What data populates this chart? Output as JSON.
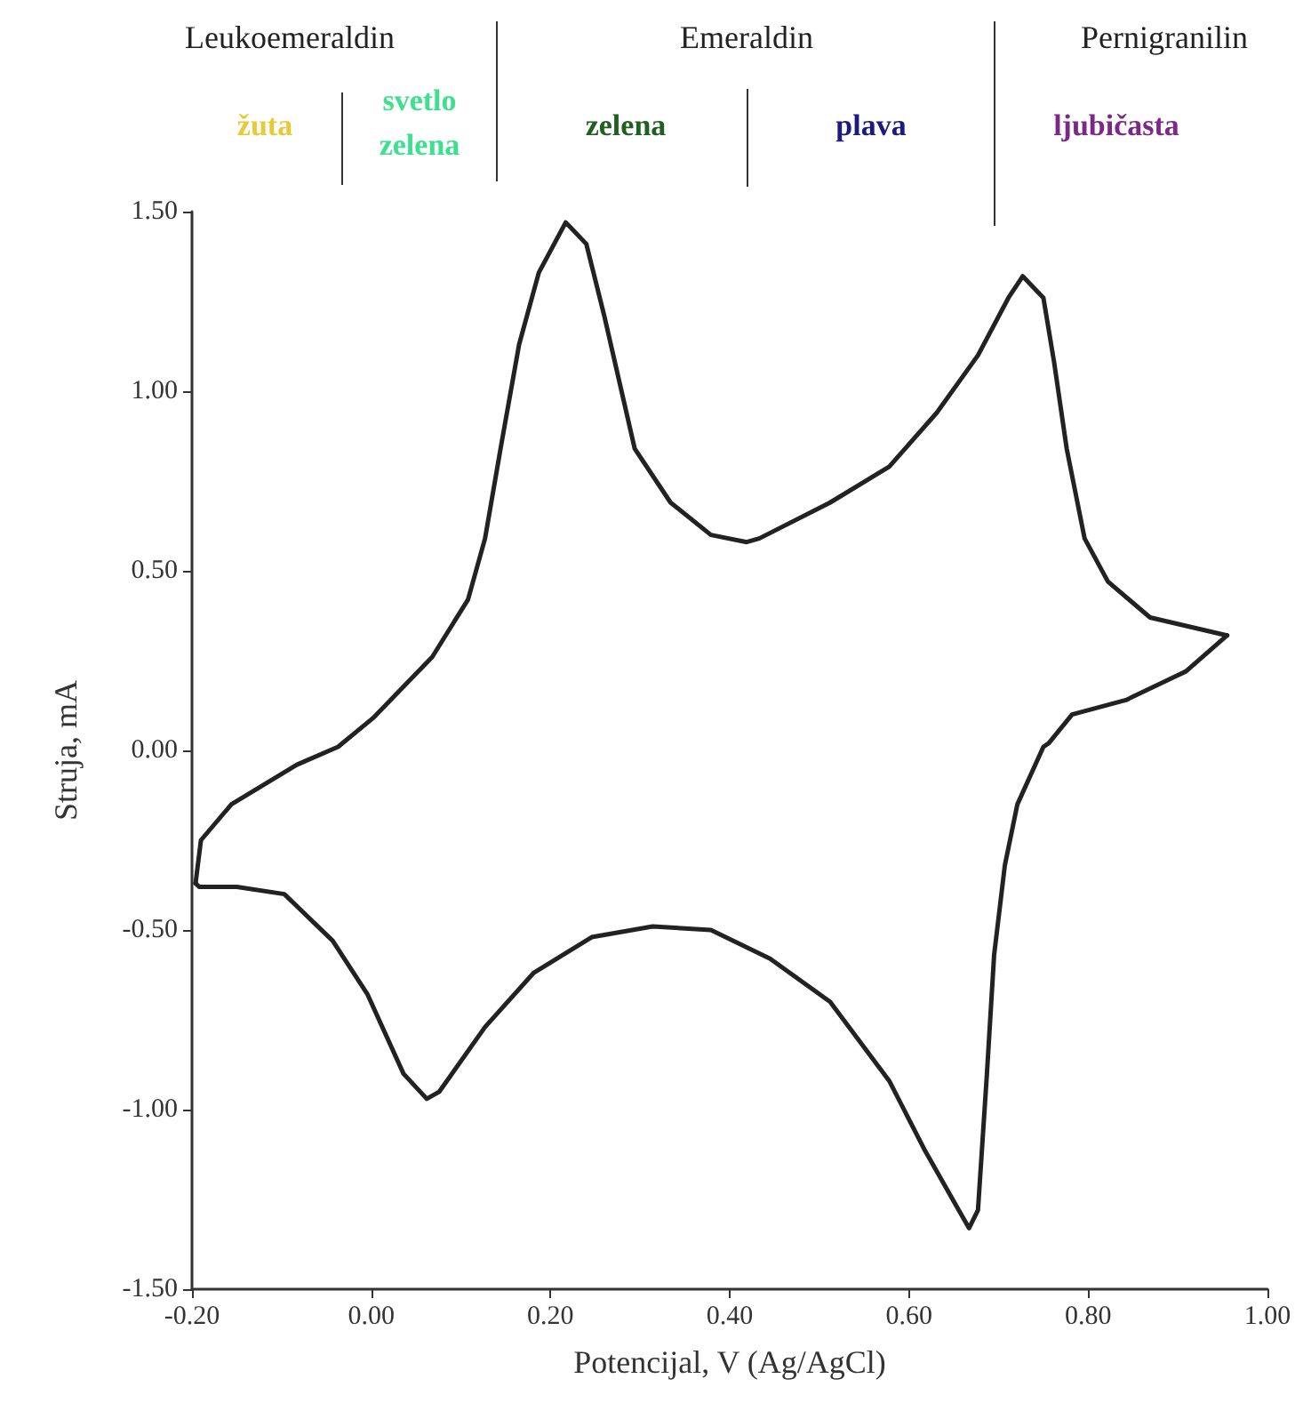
{
  "chart_data": {
    "type": "line",
    "xlabel": "Potencijal, V (Ag/AgCl)",
    "ylabel": "Struja, mA",
    "annotations": [
      "Leukoemeraldin",
      "Emeraldin",
      "Pernigranilin",
      "žuta",
      "svetlo\nzelena",
      "zelena",
      "plava",
      "ljubičasta"
    ],
    "series": [
      {
        "color": "#222222",
        "x": [
          -0.196,
          -0.19,
          -0.156,
          -0.083,
          -0.037,
          0.002,
          0.068,
          0.108,
          0.127,
          0.145,
          0.165,
          0.187,
          0.217,
          0.24,
          0.26,
          0.294,
          0.334,
          0.379,
          0.419,
          0.433,
          0.512,
          0.578,
          0.631,
          0.677,
          0.711,
          0.727,
          0.75,
          0.762,
          0.776,
          0.796,
          0.822,
          0.869,
          0.955
        ],
        "values": [
          -0.37,
          -0.25,
          -0.15,
          -0.04,
          0.01,
          0.09,
          0.26,
          0.42,
          0.59,
          0.85,
          1.13,
          1.33,
          1.47,
          1.41,
          1.21,
          0.84,
          0.69,
          0.6,
          0.58,
          0.59,
          0.69,
          0.79,
          0.94,
          1.1,
          1.26,
          1.32,
          1.26,
          1.08,
          0.84,
          0.59,
          0.47,
          0.37,
          0.32
        ]
      },
      {
        "color": "#222222",
        "x": [
          0.955,
          0.909,
          0.842,
          0.782,
          0.756,
          0.75,
          0.721,
          0.707,
          0.695,
          0.687,
          0.677,
          0.667,
          0.651,
          0.617,
          0.578,
          0.512,
          0.445,
          0.379,
          0.314,
          0.246,
          0.181,
          0.127,
          0.076,
          0.062,
          0.036,
          -0.004,
          -0.043,
          -0.097,
          -0.15,
          -0.192,
          -0.196
        ],
        "values": [
          0.32,
          0.22,
          0.14,
          0.1,
          0.02,
          0.01,
          -0.15,
          -0.32,
          -0.57,
          -0.9,
          -1.28,
          -1.33,
          -1.26,
          -1.11,
          -0.92,
          -0.7,
          -0.58,
          -0.5,
          -0.49,
          -0.52,
          -0.62,
          -0.77,
          -0.95,
          -0.97,
          -0.9,
          -0.68,
          -0.53,
          -0.4,
          -0.38,
          -0.38,
          -0.37
        ]
      }
    ],
    "xlim": [
      -0.2,
      1.0
    ],
    "ylim": [
      -1.5,
      1.5
    ],
    "xticks": [
      {
        "value": -0.2,
        "label": "-0.20"
      },
      {
        "value": 0,
        "label": "0.00"
      },
      {
        "value": 0.2,
        "label": "0.20"
      },
      {
        "value": 0.4,
        "label": "0.40"
      },
      {
        "value": 0.6,
        "label": "0.60"
      },
      {
        "value": 0.8,
        "label": "0.80"
      },
      {
        "value": 1.0,
        "label": "1.00"
      }
    ],
    "yticks": [
      {
        "value": -1.5,
        "label": "-1.50"
      },
      {
        "value": -1.0,
        "label": "-1.00"
      },
      {
        "value": -0.5,
        "label": "-0.50"
      },
      {
        "value": 0,
        "label": "0.00"
      },
      {
        "value": 0.5,
        "label": "0.50"
      },
      {
        "value": 1.0,
        "label": "1.00"
      },
      {
        "value": 1.5,
        "label": "1.50"
      }
    ],
    "grid": false,
    "marker": "none",
    "line_style": "solid"
  }
}
